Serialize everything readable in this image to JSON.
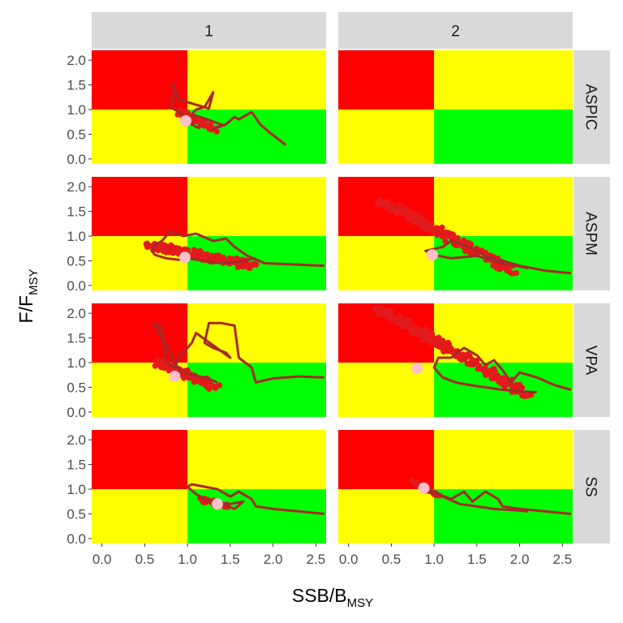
{
  "colors": {
    "red": "#ff0000",
    "yellow": "#ffff00",
    "green": "#00ff00",
    "path": "#a52a2a",
    "points": "#e31a1c",
    "current": "#ffc0cb",
    "strip": "#d9d9d9"
  },
  "chart_data": {
    "type": "scatter",
    "title": "",
    "xlabel": {
      "main": "SSB/B",
      "sub": "MSY"
    },
    "ylabel": {
      "main": "F/F",
      "sub": "MSY"
    },
    "xlim": [
      -0.12,
      2.62
    ],
    "ylim": [
      -0.1,
      2.2
    ],
    "xticks": [
      0.0,
      0.5,
      1.0,
      1.5,
      2.0,
      2.5
    ],
    "xtick_labels": [
      "0.0",
      "0.5",
      "1.0",
      "1.5",
      "2.0",
      "2.5"
    ],
    "yticks": [
      0.0,
      0.5,
      1.0,
      1.5,
      2.0
    ],
    "ytick_labels": [
      "0.0",
      "0.5",
      "1.0",
      "1.5",
      "2.0"
    ],
    "quadrant_thresholds": {
      "x": 1.0,
      "y": 1.0
    },
    "columns": [
      "1",
      "2"
    ],
    "rows": [
      "ASPIC",
      "ASPM",
      "VPA",
      "SS"
    ],
    "panels": [
      {
        "row": "ASPIC",
        "col": "1",
        "path": [
          [
            2.15,
            0.28
          ],
          [
            1.95,
            0.55
          ],
          [
            1.85,
            0.7
          ],
          [
            1.75,
            0.95
          ],
          [
            1.6,
            0.8
          ],
          [
            1.55,
            0.85
          ],
          [
            1.45,
            0.7
          ],
          [
            1.3,
            0.6
          ],
          [
            1.35,
            0.65
          ],
          [
            1.42,
            0.68
          ],
          [
            1.2,
            0.82
          ],
          [
            1.05,
            0.9
          ],
          [
            1.1,
            1.0
          ],
          [
            1.2,
            1.05
          ],
          [
            1.3,
            1.35
          ],
          [
            1.25,
            1.02
          ],
          [
            1.0,
            1.15
          ],
          [
            0.9,
            1.2
          ],
          [
            0.82,
            1.55
          ],
          [
            0.85,
            1.4
          ],
          [
            0.8,
            1.05
          ],
          [
            0.9,
            0.95
          ],
          [
            0.98,
            0.85
          ],
          [
            1.0,
            0.75
          ],
          [
            1.05,
            0.7
          ],
          [
            1.1,
            0.65
          ],
          [
            1.15,
            0.62
          ]
        ],
        "cloud": {
          "x": [
            0.9,
            1.3
          ],
          "y": [
            0.95,
            0.6
          ],
          "n": 60,
          "spread": 0.05
        },
        "current": [
          0.98,
          0.77
        ]
      },
      {
        "row": "ASPIC",
        "col": "2",
        "path": [],
        "cloud": null,
        "current": null
      },
      {
        "row": "ASPM",
        "col": "1",
        "path": [
          [
            2.6,
            0.4
          ],
          [
            2.3,
            0.42
          ],
          [
            1.9,
            0.45
          ],
          [
            1.7,
            0.6
          ],
          [
            1.55,
            0.78
          ],
          [
            1.45,
            0.95
          ],
          [
            1.3,
            0.9
          ],
          [
            1.1,
            1.05
          ],
          [
            0.95,
            1.0
          ],
          [
            0.8,
            1.1
          ],
          [
            0.7,
            0.9
          ],
          [
            0.6,
            0.8
          ],
          [
            0.58,
            0.7
          ],
          [
            0.62,
            0.62
          ],
          [
            0.75,
            0.55
          ],
          [
            0.9,
            0.52
          ],
          [
            1.0,
            0.55
          ],
          [
            1.2,
            0.5
          ],
          [
            1.4,
            0.45
          ],
          [
            1.6,
            0.48
          ],
          [
            1.8,
            0.55
          ]
        ],
        "cloud": {
          "x": [
            0.55,
            1.75
          ],
          "y": [
            0.82,
            0.4
          ],
          "n": 170,
          "spread": 0.07
        },
        "current": [
          0.97,
          0.57
        ]
      },
      {
        "row": "ASPM",
        "col": "2",
        "path": [
          [
            2.6,
            0.25
          ],
          [
            2.3,
            0.3
          ],
          [
            2.0,
            0.4
          ],
          [
            1.8,
            0.5
          ],
          [
            1.6,
            0.6
          ],
          [
            1.45,
            0.75
          ],
          [
            1.3,
            0.85
          ],
          [
            1.2,
            0.9
          ],
          [
            1.1,
            0.78
          ],
          [
            0.9,
            0.7
          ],
          [
            1.0,
            0.62
          ],
          [
            1.2,
            0.55
          ],
          [
            1.5,
            0.6
          ],
          [
            1.8,
            0.45
          ],
          [
            2.1,
            0.35
          ]
        ],
        "cloud": {
          "x": [
            0.4,
            1.9
          ],
          "y": [
            1.7,
            0.3
          ],
          "n": 230,
          "spread": 0.07
        },
        "current": [
          0.98,
          0.62
        ]
      },
      {
        "row": "VPA",
        "col": "1",
        "path": [
          [
            2.6,
            0.7
          ],
          [
            2.3,
            0.72
          ],
          [
            2.0,
            0.68
          ],
          [
            1.8,
            0.6
          ],
          [
            1.75,
            0.9
          ],
          [
            1.6,
            1.1
          ],
          [
            1.55,
            1.75
          ],
          [
            1.4,
            1.8
          ],
          [
            1.25,
            1.8
          ],
          [
            1.2,
            1.4
          ],
          [
            1.3,
            1.3
          ],
          [
            1.45,
            1.2
          ],
          [
            1.5,
            1.1
          ],
          [
            1.1,
            1.6
          ],
          [
            1.05,
            1.4
          ],
          [
            0.9,
            1.1
          ],
          [
            0.85,
            0.9
          ],
          [
            0.75,
            1.0
          ],
          [
            0.7,
            1.7
          ],
          [
            0.6,
            1.8
          ],
          [
            0.8,
            1.2
          ],
          [
            0.9,
            0.85
          ],
          [
            1.05,
            0.75
          ],
          [
            1.2,
            0.7
          ],
          [
            1.35,
            0.6
          ]
        ],
        "cloud": {
          "x": [
            0.65,
            1.35
          ],
          "y": [
            1.0,
            0.5
          ],
          "n": 120,
          "spread": 0.06
        },
        "current": [
          0.85,
          0.72
        ]
      },
      {
        "row": "VPA",
        "col": "2",
        "path": [
          [
            2.6,
            0.45
          ],
          [
            2.4,
            0.55
          ],
          [
            2.2,
            0.7
          ],
          [
            2.0,
            0.8
          ],
          [
            1.9,
            0.6
          ],
          [
            1.8,
            0.85
          ],
          [
            1.7,
            1.05
          ],
          [
            1.6,
            0.95
          ],
          [
            1.5,
            1.15
          ],
          [
            1.35,
            1.3
          ],
          [
            1.2,
            1.1
          ],
          [
            1.05,
            1.1
          ],
          [
            1.0,
            0.9
          ],
          [
            1.1,
            0.7
          ],
          [
            1.25,
            0.6
          ],
          [
            1.4,
            0.55
          ],
          [
            1.6,
            0.5
          ],
          [
            1.8,
            0.45
          ],
          [
            2.0,
            0.42
          ],
          [
            2.2,
            0.4
          ]
        ],
        "cloud": {
          "x": [
            0.35,
            2.1
          ],
          "y": [
            2.1,
            0.35
          ],
          "n": 240,
          "spread": 0.07
        },
        "current": [
          0.8,
          0.88
        ]
      },
      {
        "row": "SS",
        "col": "1",
        "path": [
          [
            2.6,
            0.5
          ],
          [
            2.3,
            0.55
          ],
          [
            2.0,
            0.6
          ],
          [
            1.8,
            0.65
          ],
          [
            1.75,
            0.8
          ],
          [
            1.6,
            0.95
          ],
          [
            1.5,
            0.85
          ],
          [
            1.35,
            1.0
          ],
          [
            1.2,
            1.05
          ],
          [
            1.05,
            1.1
          ],
          [
            1.0,
            1.05
          ],
          [
            1.1,
            0.9
          ],
          [
            1.2,
            0.8
          ],
          [
            1.3,
            0.75
          ],
          [
            1.5,
            0.7
          ],
          [
            1.65,
            0.75
          ],
          [
            1.55,
            0.6
          ],
          [
            1.4,
            0.7
          ]
        ],
        "cloud": {
          "x": [
            1.15,
            1.45
          ],
          "y": [
            0.8,
            0.65
          ],
          "n": 40,
          "spread": 0.04
        },
        "current": [
          1.35,
          0.7
        ]
      },
      {
        "row": "SS",
        "col": "2",
        "path": [
          [
            2.6,
            0.5
          ],
          [
            2.3,
            0.55
          ],
          [
            2.0,
            0.6
          ],
          [
            1.8,
            0.65
          ],
          [
            1.75,
            0.8
          ],
          [
            1.6,
            0.95
          ],
          [
            1.45,
            0.75
          ],
          [
            1.35,
            0.95
          ],
          [
            1.2,
            0.8
          ],
          [
            1.05,
            0.9
          ],
          [
            0.9,
            0.95
          ],
          [
            0.85,
            1.05
          ],
          [
            0.95,
            1.0
          ],
          [
            1.1,
            0.85
          ],
          [
            1.3,
            0.7
          ],
          [
            1.5,
            0.65
          ],
          [
            1.7,
            0.6
          ],
          [
            1.9,
            0.58
          ],
          [
            2.1,
            0.55
          ]
        ],
        "cloud": {
          "x": [
            0.75,
            1.05
          ],
          "y": [
            1.15,
            0.85
          ],
          "n": 40,
          "spread": 0.04
        },
        "current": [
          0.88,
          1.02
        ]
      }
    ]
  }
}
